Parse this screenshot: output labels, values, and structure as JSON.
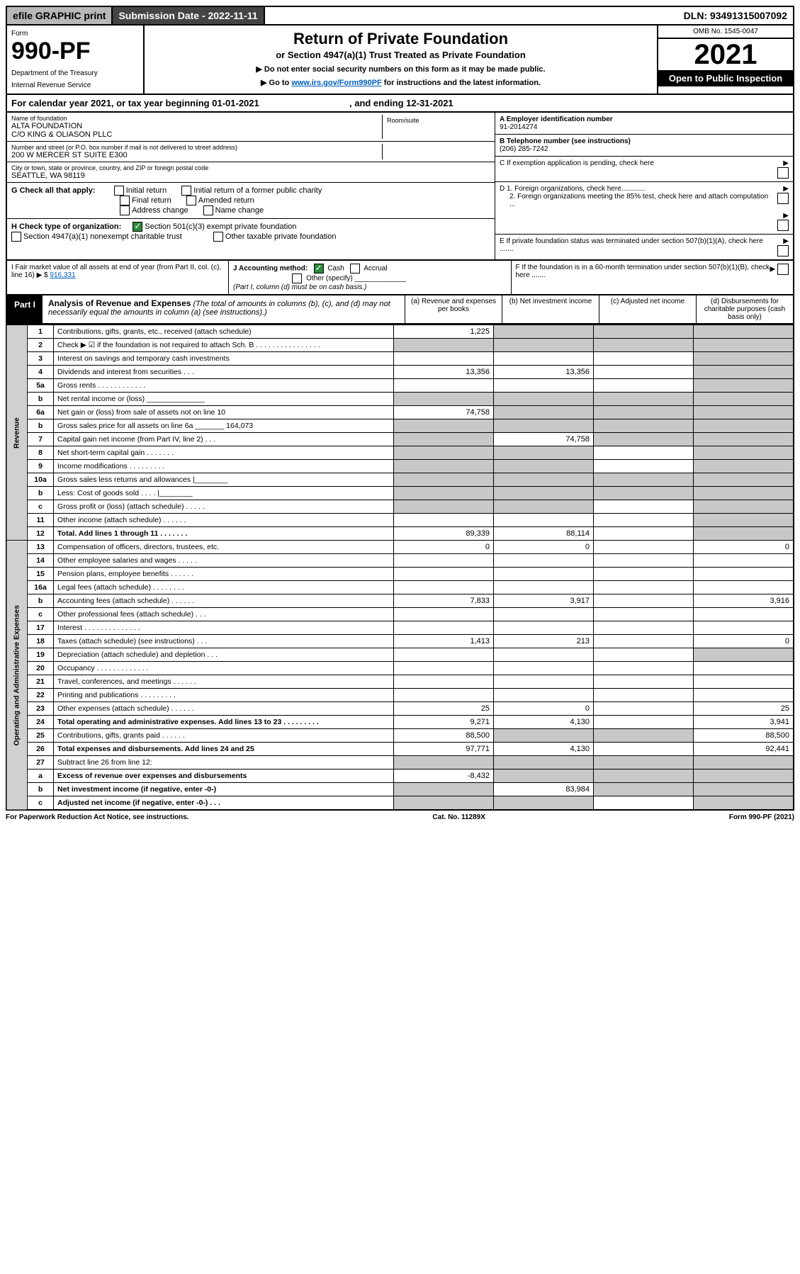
{
  "topbar": {
    "efile": "efile GRAPHIC print",
    "subdate_label": "Submission Date - 2022-11-11",
    "dln": "DLN: 93491315007092"
  },
  "formhead": {
    "form_label": "Form",
    "form_number": "990-PF",
    "dept1": "Department of the Treasury",
    "dept2": "Internal Revenue Service",
    "title": "Return of Private Foundation",
    "subtitle": "or Section 4947(a)(1) Trust Treated as Private Foundation",
    "note1": "▶ Do not enter social security numbers on this form as it may be made public.",
    "note2_pre": "▶ Go to ",
    "note2_link": "www.irs.gov/Form990PF",
    "note2_post": " for instructions and the latest information.",
    "omb": "OMB No. 1545-0047",
    "year": "2021",
    "open": "Open to Public Inspection"
  },
  "calyear": {
    "text_pre": "For calendar year 2021, or tax year beginning ",
    "begin": "01-01-2021",
    "text_mid": " , and ending ",
    "end": "12-31-2021"
  },
  "info": {
    "name_lbl": "Name of foundation",
    "name1": "ALTA FOUNDATION",
    "name2": "C/O KING & OLIASON PLLC",
    "room_lbl": "Room/suite",
    "addr_lbl": "Number and street (or P.O. box number if mail is not delivered to street address)",
    "addr": "200 W MERCER ST SUITE E300",
    "city_lbl": "City or town, state or province, country, and ZIP or foreign postal code",
    "city": "SEATTLE, WA  98119",
    "A_lbl": "A Employer identification number",
    "A_val": "91-2014274",
    "B_lbl": "B Telephone number (see instructions)",
    "B_val": "(206) 285-7242",
    "C_lbl": "C If exemption application is pending, check here",
    "D1": "D 1. Foreign organizations, check here............",
    "D2": "2. Foreign organizations meeting the 85% test, check here and attach computation ...",
    "E": "E  If private foundation status was terminated under section 507(b)(1)(A), check here .......",
    "F": "F  If the foundation is in a 60-month termination under section 507(b)(1)(B), check here .......",
    "G_lbl": "G Check all that apply:",
    "G_opts": [
      "Initial return",
      "Initial return of a former public charity",
      "Final return",
      "Amended return",
      "Address change",
      "Name change"
    ],
    "H_lbl": "H Check type of organization:",
    "H_opt1": "Section 501(c)(3) exempt private foundation",
    "H_opt2": "Section 4947(a)(1) nonexempt charitable trust",
    "H_opt3": "Other taxable private foundation",
    "I_lbl": "I Fair market value of all assets at end of year (from Part II, col. (c), line 16) ▶ $",
    "I_val": "916,331",
    "J_lbl": "J Accounting method:",
    "J_cash": "Cash",
    "J_accrual": "Accrual",
    "J_other": "Other (specify)",
    "J_note": "(Part I, column (d) must be on cash basis.)"
  },
  "part1": {
    "num": "Part I",
    "title": "Analysis of Revenue and Expenses",
    "note": " (The total of amounts in columns (b), (c), and (d) may not necessarily equal the amounts in column (a) (see instructions).)",
    "col_a": "(a)  Revenue and expenses per books",
    "col_b": "(b)  Net investment income",
    "col_c": "(c)  Adjusted net income",
    "col_d": "(d)  Disbursements for charitable purposes (cash basis only)"
  },
  "sidelabels": {
    "rev": "Revenue",
    "exp": "Operating and Administrative Expenses"
  },
  "rows": [
    {
      "ln": "1",
      "lbl": "Contributions, gifts, grants, etc., received (attach schedule)",
      "a": "1,225",
      "b": "",
      "c": "",
      "d": "",
      "shade": [
        "b",
        "c",
        "d"
      ]
    },
    {
      "ln": "2",
      "lbl": "Check ▶ ☑ if the foundation is not required to attach Sch. B   .  .  .  .  .  .  .  .  .  .  .  .  .  .  .  .",
      "a": "",
      "b": "",
      "c": "",
      "d": "",
      "shade": [
        "a",
        "b",
        "c",
        "d"
      ]
    },
    {
      "ln": "3",
      "lbl": "Interest on savings and temporary cash investments",
      "a": "",
      "b": "",
      "c": "",
      "d": "",
      "shade": [
        "d"
      ]
    },
    {
      "ln": "4",
      "lbl": "Dividends and interest from securities   .  .  .",
      "a": "13,356",
      "b": "13,356",
      "c": "",
      "d": "",
      "shade": [
        "d"
      ]
    },
    {
      "ln": "5a",
      "lbl": "Gross rents   .  .  .  .  .  .  .  .  .  .  .  .",
      "a": "",
      "b": "",
      "c": "",
      "d": "",
      "shade": [
        "d"
      ]
    },
    {
      "ln": "b",
      "lbl": "Net rental income or (loss)  ______________",
      "a": "",
      "b": "",
      "c": "",
      "d": "",
      "shade": [
        "a",
        "b",
        "c",
        "d"
      ]
    },
    {
      "ln": "6a",
      "lbl": "Net gain or (loss) from sale of assets not on line 10",
      "a": "74,758",
      "b": "",
      "c": "",
      "d": "",
      "shade": [
        "b",
        "c",
        "d"
      ]
    },
    {
      "ln": "b",
      "lbl": "Gross sales price for all assets on line 6a _______ 164,073",
      "a": "",
      "b": "",
      "c": "",
      "d": "",
      "shade": [
        "a",
        "b",
        "c",
        "d"
      ]
    },
    {
      "ln": "7",
      "lbl": "Capital gain net income (from Part IV, line 2)   .  .  .",
      "a": "",
      "b": "74,758",
      "c": "",
      "d": "",
      "shade": [
        "a",
        "c",
        "d"
      ]
    },
    {
      "ln": "8",
      "lbl": "Net short-term capital gain   .  .  .  .  .  .  .",
      "a": "",
      "b": "",
      "c": "",
      "d": "",
      "shade": [
        "a",
        "b",
        "d"
      ]
    },
    {
      "ln": "9",
      "lbl": "Income modifications   .  .  .  .  .  .  .  .  .",
      "a": "",
      "b": "",
      "c": "",
      "d": "",
      "shade": [
        "a",
        "b",
        "d"
      ]
    },
    {
      "ln": "10a",
      "lbl": "Gross sales less returns and allowances  |________",
      "a": "",
      "b": "",
      "c": "",
      "d": "",
      "shade": [
        "a",
        "b",
        "c",
        "d"
      ]
    },
    {
      "ln": "b",
      "lbl": "Less: Cost of goods sold   .  .  .  .  |________",
      "a": "",
      "b": "",
      "c": "",
      "d": "",
      "shade": [
        "a",
        "b",
        "c",
        "d"
      ]
    },
    {
      "ln": "c",
      "lbl": "Gross profit or (loss) (attach schedule)   .  .  .  .  .",
      "a": "",
      "b": "",
      "c": "",
      "d": "",
      "shade": [
        "a",
        "b",
        "d"
      ]
    },
    {
      "ln": "11",
      "lbl": "Other income (attach schedule)   .  .  .  .  .  .",
      "a": "",
      "b": "",
      "c": "",
      "d": "",
      "shade": [
        "d"
      ]
    },
    {
      "ln": "12",
      "lbl": "Total. Add lines 1 through 11   .  .  .  .  .  .  .",
      "a": "89,339",
      "b": "88,114",
      "c": "",
      "d": "",
      "bold": true,
      "shade": [
        "d"
      ]
    },
    {
      "ln": "13",
      "lbl": "Compensation of officers, directors, trustees, etc.",
      "a": "0",
      "b": "0",
      "c": "",
      "d": "0"
    },
    {
      "ln": "14",
      "lbl": "Other employee salaries and wages   .  .  .  .  .",
      "a": "",
      "b": "",
      "c": "",
      "d": ""
    },
    {
      "ln": "15",
      "lbl": "Pension plans, employee benefits   .  .  .  .  .  .",
      "a": "",
      "b": "",
      "c": "",
      "d": ""
    },
    {
      "ln": "16a",
      "lbl": "Legal fees (attach schedule)   .  .  .  .  .  .  .  .",
      "a": "",
      "b": "",
      "c": "",
      "d": ""
    },
    {
      "ln": "b",
      "lbl": "Accounting fees (attach schedule)   .  .  .  .  .  .",
      "a": "7,833",
      "b": "3,917",
      "c": "",
      "d": "3,916"
    },
    {
      "ln": "c",
      "lbl": "Other professional fees (attach schedule)   .  .  .",
      "a": "",
      "b": "",
      "c": "",
      "d": ""
    },
    {
      "ln": "17",
      "lbl": "Interest   .  .  .  .  .  .  .  .  .  .  .  .  .  .",
      "a": "",
      "b": "",
      "c": "",
      "d": ""
    },
    {
      "ln": "18",
      "lbl": "Taxes (attach schedule) (see instructions)   .  .  .",
      "a": "1,413",
      "b": "213",
      "c": "",
      "d": "0"
    },
    {
      "ln": "19",
      "lbl": "Depreciation (attach schedule) and depletion   .  .  .",
      "a": "",
      "b": "",
      "c": "",
      "d": "",
      "shade": [
        "d"
      ]
    },
    {
      "ln": "20",
      "lbl": "Occupancy   .  .  .  .  .  .  .  .  .  .  .  .  .",
      "a": "",
      "b": "",
      "c": "",
      "d": ""
    },
    {
      "ln": "21",
      "lbl": "Travel, conferences, and meetings   .  .  .  .  .  .",
      "a": "",
      "b": "",
      "c": "",
      "d": ""
    },
    {
      "ln": "22",
      "lbl": "Printing and publications   .  .  .  .  .  .  .  .  .",
      "a": "",
      "b": "",
      "c": "",
      "d": ""
    },
    {
      "ln": "23",
      "lbl": "Other expenses (attach schedule)   .  .  .  .  .  .",
      "a": "25",
      "b": "0",
      "c": "",
      "d": "25"
    },
    {
      "ln": "24",
      "lbl": "Total operating and administrative expenses. Add lines 13 to 23   .  .  .  .  .  .  .  .  .",
      "a": "9,271",
      "b": "4,130",
      "c": "",
      "d": "3,941",
      "bold": true
    },
    {
      "ln": "25",
      "lbl": "Contributions, gifts, grants paid   .  .  .  .  .  .",
      "a": "88,500",
      "b": "",
      "c": "",
      "d": "88,500",
      "shade": [
        "b",
        "c"
      ]
    },
    {
      "ln": "26",
      "lbl": "Total expenses and disbursements. Add lines 24 and 25",
      "a": "97,771",
      "b": "4,130",
      "c": "",
      "d": "92,441",
      "bold": true
    },
    {
      "ln": "27",
      "lbl": "Subtract line 26 from line 12:",
      "a": "",
      "b": "",
      "c": "",
      "d": "",
      "shade": [
        "a",
        "b",
        "c",
        "d"
      ]
    },
    {
      "ln": "a",
      "lbl": "Excess of revenue over expenses and disbursements",
      "a": "-8,432",
      "b": "",
      "c": "",
      "d": "",
      "bold": true,
      "shade": [
        "b",
        "c",
        "d"
      ]
    },
    {
      "ln": "b",
      "lbl": "Net investment income (if negative, enter -0-)",
      "a": "",
      "b": "83,984",
      "c": "",
      "d": "",
      "bold": true,
      "shade": [
        "a",
        "c",
        "d"
      ]
    },
    {
      "ln": "c",
      "lbl": "Adjusted net income (if negative, enter -0-)   .  .  .",
      "a": "",
      "b": "",
      "c": "",
      "d": "",
      "bold": true,
      "shade": [
        "a",
        "b",
        "d"
      ]
    }
  ],
  "foot": {
    "left": "For Paperwork Reduction Act Notice, see instructions.",
    "mid": "Cat. No. 11289X",
    "right": "Form 990-PF (2021)"
  },
  "colors": {
    "header_dark": "#444444",
    "header_grey": "#b8b8b8",
    "green": "#2e8b3d",
    "shade": "#c8c8c8",
    "link": "#0060c0"
  }
}
